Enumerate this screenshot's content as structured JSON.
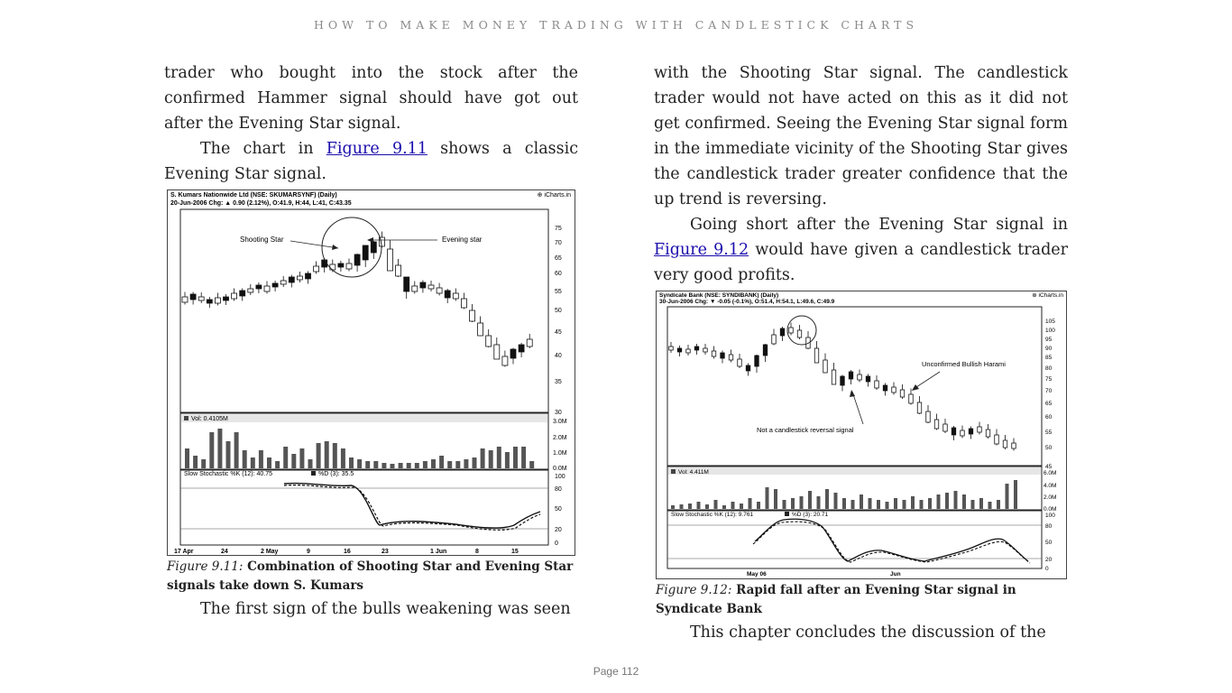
{
  "running_head": "HOW TO MAKE MONEY TRADING WITH CANDLESTICK CHARTS",
  "left": {
    "p1": "trader who bought into the stock after the confirmed Hammer signal should have got out after the Evening Star signal.",
    "p2_before": "The chart in ",
    "p2_link": "Figure 9.11",
    "p2_after": " shows a classic Evening Star signal.",
    "figure": {
      "header1": "S. Kumars Nationwide Ltd (NSE: SKUMARSYNF) (Daily)",
      "header2": "20-Jun-2006 Chg: ▲ 0.90 (2.12%), O:41.9, H:44, L:41, C:43.35",
      "brand": "⊕ iCharts.in",
      "annot_shooting": "Shooting Star",
      "annot_evening": "Evening star",
      "price_ticks": [
        "75",
        "70",
        "65",
        "60",
        "55",
        "50",
        "45",
        "40",
        "35",
        "30"
      ],
      "vol_label": "Vol: 0.4105M",
      "vol_ticks": [
        "3.0M",
        "2.0M",
        "1.0M",
        "0.0M"
      ],
      "stoch_label": "Slow Stochastic %K (12): 40.75",
      "stoch_d_label": "%D (3): 35.5",
      "stoch_ticks": [
        "100",
        "80",
        "50",
        "20",
        "0"
      ],
      "x_ticks": [
        "17 Apr",
        "24",
        "2 May",
        "9",
        "16",
        "23",
        "1 Jun",
        "8",
        "15"
      ],
      "caption_label": "Figure 9.11:",
      "caption_text": " Combination of Shooting Star and Evening Star signals take down S. Kumars"
    },
    "p3": "The first sign of the bulls weakening was seen"
  },
  "right": {
    "p1": "with the Shooting Star signal. The candlestick trader would not have acted on this as it did not get confirmed. Seeing the Evening Star signal form in the immediate vicinity of the Shooting Star gives the candlestick trader greater confidence that the up trend is reversing.",
    "p2_before": "Going short after the Evening Star signal in ",
    "p2_link": "Figure 9.12",
    "p2_after": " would have given a candlestick trader very good profits.",
    "figure": {
      "header1": "Syndicate Bank (NSE: SYNDIBANK) (Daily)",
      "header2": "30-Jun-2006 Chg: ▼ -0.05 (-0.1%), O:51.4, H:54.1, L:49.6, C:49.9",
      "brand": "⊕ iCharts.in",
      "annot_harami": "Unconfirmed Bullish Harami",
      "annot_not": "Not a candlestick reversal signal",
      "price_ticks": [
        "105",
        "100",
        "95",
        "90",
        "85",
        "80",
        "75",
        "70",
        "65",
        "60",
        "55",
        "50",
        "45"
      ],
      "vol_label": "Vol: 4.411M",
      "vol_ticks": [
        "6.0M",
        "4.0M",
        "2.0M",
        "0.0M"
      ],
      "stoch_label": "Slow Stochastic %K (12): 9.761",
      "stoch_d_label": "%D (3): 20.71",
      "stoch_ticks": [
        "100",
        "80",
        "50",
        "20",
        "0"
      ],
      "x_ticks": [
        "May 06",
        "Jun"
      ],
      "caption_label": "Figure 9.12:",
      "caption_text": " Rapid fall after an Evening Star signal in Syndicate Bank"
    },
    "p3": "This chapter concludes the discussion of the"
  },
  "page_number": "Page 112"
}
